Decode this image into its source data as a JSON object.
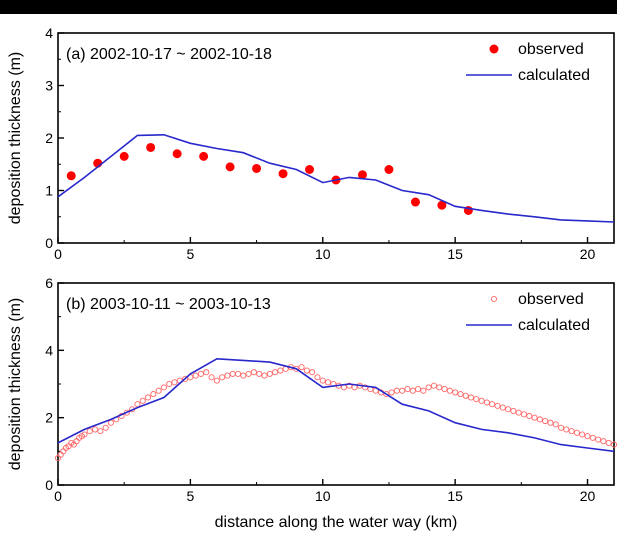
{
  "chart_data": [
    {
      "type": "line",
      "title": "(a) 2002-10-17 ~ 2002-10-18",
      "xlabel": "",
      "ylabel": "deposition thickness (m)",
      "xlim": [
        0,
        21
      ],
      "ylim": [
        0,
        4
      ],
      "x_ticks": [
        "0",
        "5",
        "10",
        "15",
        "20"
      ],
      "y_ticks": [
        "0",
        "1",
        "2",
        "3",
        "4"
      ],
      "legend": {
        "position": "top-right",
        "observed": "observed",
        "calculated": "calculated"
      },
      "series": [
        {
          "name": "observed",
          "kind": "scatter",
          "marker": "filled-circle",
          "color": "#ff0000",
          "x": [
            0.5,
            1.5,
            2.5,
            3.5,
            4.5,
            5.5,
            6.5,
            7.5,
            8.5,
            9.5,
            10.5,
            11.5,
            12.5,
            13.5,
            14.5,
            15.5
          ],
          "y": [
            1.28,
            1.52,
            1.65,
            1.82,
            1.7,
            1.65,
            1.45,
            1.42,
            1.32,
            1.4,
            1.2,
            1.3,
            1.4,
            0.78,
            0.72,
            0.62
          ]
        },
        {
          "name": "calculated",
          "kind": "line",
          "color": "#2828cc",
          "x": [
            0,
            1,
            2,
            3,
            4,
            5,
            6,
            7,
            8,
            9,
            10,
            11,
            12,
            13,
            14,
            15,
            16,
            17,
            18,
            19,
            20,
            21
          ],
          "y": [
            0.88,
            1.25,
            1.65,
            2.05,
            2.06,
            1.9,
            1.8,
            1.72,
            1.52,
            1.4,
            1.15,
            1.25,
            1.2,
            1.0,
            0.92,
            0.7,
            0.62,
            0.55,
            0.5,
            0.44,
            0.42,
            0.4
          ]
        }
      ]
    },
    {
      "type": "line",
      "title": "(b) 2003-10-11 ~ 2003-10-13",
      "xlabel": "distance along the water way (km)",
      "ylabel": "deposition thickness (m)",
      "xlim": [
        0,
        21
      ],
      "ylim": [
        0,
        6
      ],
      "x_ticks": [
        "0",
        "5",
        "10",
        "15",
        "20"
      ],
      "y_ticks": [
        "0",
        "2",
        "4",
        "6"
      ],
      "legend": {
        "position": "top-right",
        "observed": "observed",
        "calculated": "calculated"
      },
      "series": [
        {
          "name": "observed",
          "kind": "scatter",
          "marker": "open-circle",
          "color": "#ff6666",
          "x": [
            0.0,
            0.1,
            0.2,
            0.3,
            0.4,
            0.5,
            0.6,
            0.7,
            0.8,
            0.9,
            1.0,
            1.2,
            1.4,
            1.6,
            1.8,
            2.0,
            2.2,
            2.4,
            2.6,
            2.8,
            3.0,
            3.2,
            3.4,
            3.6,
            3.8,
            4.0,
            4.2,
            4.4,
            4.6,
            4.8,
            5.0,
            5.2,
            5.4,
            5.6,
            5.8,
            6.0,
            6.2,
            6.4,
            6.6,
            6.8,
            7.0,
            7.2,
            7.4,
            7.6,
            7.8,
            8.0,
            8.2,
            8.4,
            8.6,
            8.8,
            9.0,
            9.2,
            9.4,
            9.6,
            9.8,
            10.0,
            10.2,
            10.4,
            10.6,
            10.8,
            11.0,
            11.2,
            11.4,
            11.6,
            11.8,
            12.0,
            12.2,
            12.4,
            12.6,
            12.8,
            13.0,
            13.2,
            13.4,
            13.6,
            13.8,
            14.0,
            14.2,
            14.4,
            14.6,
            14.8,
            15.0,
            15.2,
            15.4,
            15.6,
            15.8,
            16.0,
            16.2,
            16.4,
            16.6,
            16.8,
            17.0,
            17.2,
            17.4,
            17.6,
            17.8,
            18.0,
            18.2,
            18.4,
            18.6,
            18.8,
            19.0,
            19.2,
            19.4,
            19.6,
            19.8,
            20.0,
            20.2,
            20.4,
            20.6,
            20.8,
            21.0
          ],
          "y": [
            0.8,
            0.9,
            1.0,
            1.1,
            1.15,
            1.25,
            1.2,
            1.3,
            1.4,
            1.45,
            1.5,
            1.6,
            1.65,
            1.6,
            1.7,
            1.85,
            1.95,
            2.05,
            2.15,
            2.25,
            2.4,
            2.5,
            2.6,
            2.7,
            2.8,
            2.9,
            3.0,
            3.05,
            3.1,
            3.15,
            3.2,
            3.25,
            3.3,
            3.35,
            3.2,
            3.1,
            3.2,
            3.25,
            3.3,
            3.3,
            3.25,
            3.3,
            3.35,
            3.3,
            3.25,
            3.3,
            3.35,
            3.4,
            3.45,
            3.5,
            3.45,
            3.5,
            3.4,
            3.35,
            3.2,
            3.1,
            3.05,
            3.0,
            2.95,
            2.9,
            2.95,
            2.9,
            2.95,
            2.9,
            2.85,
            2.8,
            2.75,
            2.7,
            2.75,
            2.8,
            2.8,
            2.85,
            2.8,
            2.85,
            2.8,
            2.9,
            2.95,
            2.9,
            2.85,
            2.8,
            2.75,
            2.7,
            2.65,
            2.6,
            2.55,
            2.5,
            2.45,
            2.4,
            2.35,
            2.3,
            2.25,
            2.2,
            2.15,
            2.1,
            2.05,
            2.0,
            1.95,
            1.9,
            1.85,
            1.8,
            1.7,
            1.65,
            1.6,
            1.55,
            1.5,
            1.45,
            1.4,
            1.35,
            1.3,
            1.25,
            1.2
          ]
        },
        {
          "name": "calculated",
          "kind": "line",
          "color": "#2828cc",
          "x": [
            0,
            1,
            2,
            3,
            4,
            5,
            6,
            7,
            8,
            9,
            10,
            11,
            12,
            13,
            14,
            15,
            16,
            17,
            18,
            19,
            20,
            21
          ],
          "y": [
            1.25,
            1.65,
            1.95,
            2.3,
            2.6,
            3.3,
            3.75,
            3.7,
            3.65,
            3.45,
            2.9,
            3.0,
            2.9,
            2.4,
            2.2,
            1.85,
            1.65,
            1.55,
            1.4,
            1.2,
            1.1,
            1.0
          ]
        }
      ]
    }
  ]
}
